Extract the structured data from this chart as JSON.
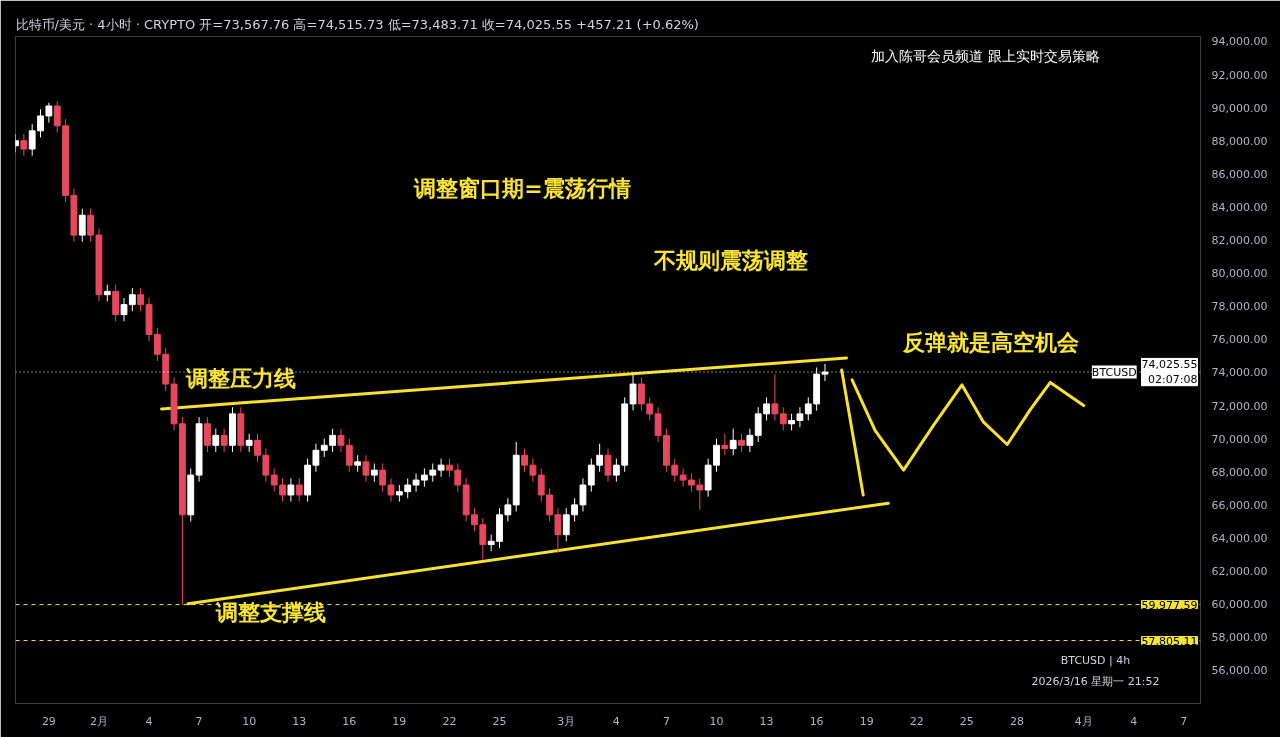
{
  "chart_data": {
    "type": "candlestick",
    "title": "比特币/美元 · 4小时 · CRYPTO  开=73,567.76  高=74,515.73  低=73,483.71  收=74,025.55  +457.21 (+0.62%)",
    "x": [
      "2026-01-27T00:00",
      "2026-01-27T12:00",
      "2026-01-28T00:00",
      "2026-01-28T12:00",
      "2026-01-29T00:00",
      "2026-01-29T12:00",
      "2026-01-30T00:00",
      "2026-01-30T12:00",
      "2026-01-31T00:00",
      "2026-01-31T12:00",
      "2026-02-01T00:00",
      "2026-02-01T12:00",
      "2026-02-02T00:00",
      "2026-02-02T12:00",
      "2026-02-03T00:00",
      "2026-02-03T12:00",
      "2026-02-04T00:00",
      "2026-02-04T12:00",
      "2026-02-05T00:00",
      "2026-02-05T12:00",
      "2026-02-06T00:00",
      "2026-02-06T12:00",
      "2026-02-07T00:00",
      "2026-02-07T12:00",
      "2026-02-08T00:00",
      "2026-02-08T12:00",
      "2026-02-09T00:00",
      "2026-02-09T12:00",
      "2026-02-10T00:00",
      "2026-02-10T12:00",
      "2026-02-11T00:00",
      "2026-02-11T12:00",
      "2026-02-12T00:00",
      "2026-02-12T12:00",
      "2026-02-13T00:00",
      "2026-02-13T12:00",
      "2026-02-14T00:00",
      "2026-02-14T12:00",
      "2026-02-15T00:00",
      "2026-02-15T12:00",
      "2026-02-16T00:00",
      "2026-02-16T12:00",
      "2026-02-17T00:00",
      "2026-02-17T12:00",
      "2026-02-18T00:00",
      "2026-02-18T12:00",
      "2026-02-19T00:00",
      "2026-02-19T12:00",
      "2026-02-20T00:00",
      "2026-02-20T12:00",
      "2026-02-21T00:00",
      "2026-02-21T12:00",
      "2026-02-22T00:00",
      "2026-02-22T12:00",
      "2026-02-23T00:00",
      "2026-02-23T12:00",
      "2026-02-24T00:00",
      "2026-02-24T12:00",
      "2026-02-25T00:00",
      "2026-02-25T12:00",
      "2026-02-26T00:00",
      "2026-02-26T12:00",
      "2026-02-27T00:00",
      "2026-02-27T12:00",
      "2026-02-28T00:00",
      "2026-02-28T12:00",
      "2026-03-01T00:00",
      "2026-03-01T12:00",
      "2026-03-02T00:00",
      "2026-03-02T12:00",
      "2026-03-03T00:00",
      "2026-03-03T12:00",
      "2026-03-04T00:00",
      "2026-03-04T12:00",
      "2026-03-05T00:00",
      "2026-03-05T12:00",
      "2026-03-06T00:00",
      "2026-03-06T12:00",
      "2026-03-07T00:00",
      "2026-03-07T12:00",
      "2026-03-08T00:00",
      "2026-03-08T12:00",
      "2026-03-09T00:00",
      "2026-03-09T12:00",
      "2026-03-10T00:00",
      "2026-03-10T12:00",
      "2026-03-11T00:00",
      "2026-03-11T12:00",
      "2026-03-12T00:00",
      "2026-03-12T12:00",
      "2026-03-13T00:00",
      "2026-03-13T12:00",
      "2026-03-14T00:00",
      "2026-03-14T12:00",
      "2026-03-15T00:00",
      "2026-03-15T12:00",
      "2026-03-16T00:00",
      "2026-03-16T12:00"
    ],
    "ohlc": [
      [
        87700,
        88400,
        87300,
        88000
      ],
      [
        88000,
        88400,
        87100,
        87500
      ],
      [
        87500,
        89000,
        87100,
        88600
      ],
      [
        88600,
        89900,
        88200,
        89500
      ],
      [
        89500,
        90300,
        89100,
        90100
      ],
      [
        90100,
        90400,
        88500,
        88900
      ],
      [
        88900,
        89300,
        84300,
        84700
      ],
      [
        84700,
        85100,
        81900,
        82300
      ],
      [
        82300,
        83900,
        81900,
        83500
      ],
      [
        83500,
        83900,
        81900,
        82300
      ],
      [
        82300,
        82700,
        78300,
        78700
      ],
      [
        78700,
        79300,
        78300,
        78900
      ],
      [
        78900,
        79300,
        77100,
        77500
      ],
      [
        77500,
        78500,
        77100,
        78100
      ],
      [
        78100,
        79100,
        77700,
        78700
      ],
      [
        78700,
        79100,
        77700,
        78100
      ],
      [
        78100,
        78500,
        75900,
        76300
      ],
      [
        76300,
        76700,
        74700,
        75100
      ],
      [
        75100,
        75500,
        72900,
        73300
      ],
      [
        73300,
        73700,
        70500,
        70900
      ],
      [
        70900,
        71300,
        59978,
        65400
      ],
      [
        65400,
        68200,
        65000,
        67800
      ],
      [
        67800,
        71300,
        67400,
        70900
      ],
      [
        70900,
        71300,
        69200,
        69600
      ],
      [
        69600,
        70600,
        69200,
        70200
      ],
      [
        70200,
        70600,
        69200,
        69600
      ],
      [
        69600,
        71900,
        69200,
        71500
      ],
      [
        71500,
        71900,
        69200,
        69600
      ],
      [
        69600,
        70300,
        69200,
        69900
      ],
      [
        69900,
        70300,
        68600,
        69000
      ],
      [
        69000,
        69400,
        67400,
        67800
      ],
      [
        67800,
        68200,
        66800,
        67200
      ],
      [
        67200,
        67600,
        66200,
        66600
      ],
      [
        66600,
        67600,
        66200,
        67200
      ],
      [
        67200,
        67600,
        66200,
        66600
      ],
      [
        66600,
        68800,
        66200,
        68400
      ],
      [
        68400,
        69700,
        68000,
        69300
      ],
      [
        69300,
        70000,
        68900,
        69600
      ],
      [
        69600,
        70600,
        69200,
        70200
      ],
      [
        70200,
        70600,
        69200,
        69600
      ],
      [
        69600,
        70000,
        68000,
        68400
      ],
      [
        68400,
        69000,
        68000,
        68600
      ],
      [
        68600,
        69000,
        67400,
        67800
      ],
      [
        67800,
        68500,
        67400,
        68100
      ],
      [
        68100,
        68500,
        66800,
        67200
      ],
      [
        67200,
        67600,
        66200,
        66600
      ],
      [
        66600,
        67200,
        66200,
        66800
      ],
      [
        66800,
        67600,
        66400,
        67200
      ],
      [
        67200,
        67900,
        66800,
        67500
      ],
      [
        67500,
        68200,
        67100,
        67800
      ],
      [
        67800,
        68500,
        67400,
        68100
      ],
      [
        68100,
        68800,
        67700,
        68400
      ],
      [
        68400,
        68800,
        67700,
        68100
      ],
      [
        68100,
        68500,
        66800,
        67200
      ],
      [
        67200,
        67600,
        65000,
        65400
      ],
      [
        65400,
        65800,
        64400,
        64800
      ],
      [
        64800,
        65200,
        62700,
        63600
      ],
      [
        63600,
        64200,
        63200,
        63800
      ],
      [
        63800,
        65800,
        63400,
        65400
      ],
      [
        65400,
        66400,
        65000,
        66000
      ],
      [
        66000,
        69800,
        65600,
        69000
      ],
      [
        69000,
        69400,
        68000,
        68400
      ],
      [
        68400,
        68800,
        67400,
        67800
      ],
      [
        67800,
        68200,
        66200,
        66600
      ],
      [
        66600,
        67000,
        65000,
        65400
      ],
      [
        65400,
        65800,
        63100,
        64200
      ],
      [
        64200,
        65800,
        63800,
        65400
      ],
      [
        65400,
        66400,
        65000,
        66000
      ],
      [
        66000,
        67600,
        65600,
        67200
      ],
      [
        67200,
        68800,
        66800,
        68400
      ],
      [
        68400,
        69700,
        68000,
        69000
      ],
      [
        69000,
        69400,
        67400,
        67800
      ],
      [
        67800,
        68800,
        67400,
        68400
      ],
      [
        68400,
        72500,
        68000,
        72100
      ],
      [
        72100,
        74000,
        71700,
        73300
      ],
      [
        73300,
        73700,
        71700,
        72100
      ],
      [
        72100,
        72500,
        71100,
        71500
      ],
      [
        71500,
        71900,
        69800,
        70200
      ],
      [
        70200,
        70600,
        68000,
        68400
      ],
      [
        68400,
        68800,
        67400,
        67800
      ],
      [
        67800,
        68200,
        67100,
        67500
      ],
      [
        67500,
        67900,
        66800,
        67200
      ],
      [
        67200,
        67600,
        65700,
        66900
      ],
      [
        66900,
        68800,
        66500,
        68400
      ],
      [
        68400,
        70000,
        68000,
        69600
      ],
      [
        69600,
        70300,
        69000,
        69400
      ],
      [
        69400,
        70600,
        69000,
        69900
      ],
      [
        69900,
        70300,
        69200,
        69600
      ],
      [
        69600,
        70600,
        69200,
        70200
      ],
      [
        70200,
        71900,
        69800,
        71500
      ],
      [
        71500,
        72500,
        71100,
        72100
      ],
      [
        72100,
        73900,
        71100,
        71500
      ],
      [
        71500,
        71900,
        70500,
        70900
      ],
      [
        70900,
        71500,
        70500,
        71100
      ],
      [
        71100,
        71900,
        70700,
        71500
      ],
      [
        71500,
        72500,
        71100,
        72100
      ],
      [
        72100,
        74300,
        71700,
        73900
      ],
      [
        73900,
        74515.73,
        73483.71,
        74025.55
      ]
    ],
    "colors": [
      "#ffffff",
      "#e8485e",
      "#ffffff",
      "#ffffff",
      "#ffffff",
      "#e8485e",
      "#e8485e",
      "#e8485e",
      "#ffffff",
      "#e8485e",
      "#e8485e",
      "#ffffff",
      "#e8485e",
      "#ffffff",
      "#ffffff",
      "#e8485e",
      "#e8485e",
      "#e8485e",
      "#e8485e",
      "#e8485e",
      "#e8485e",
      "#ffffff",
      "#ffffff",
      "#e8485e",
      "#ffffff",
      "#e8485e",
      "#ffffff",
      "#e8485e",
      "#ffffff",
      "#e8485e",
      "#e8485e",
      "#e8485e",
      "#e8485e",
      "#ffffff",
      "#e8485e",
      "#ffffff",
      "#ffffff",
      "#ffffff",
      "#ffffff",
      "#e8485e",
      "#e8485e",
      "#ffffff",
      "#e8485e",
      "#ffffff",
      "#e8485e",
      "#e8485e",
      "#ffffff",
      "#ffffff",
      "#ffffff",
      "#ffffff",
      "#ffffff",
      "#ffffff",
      "#e8485e",
      "#e8485e",
      "#e8485e",
      "#e8485e",
      "#e8485e",
      "#ffffff",
      "#ffffff",
      "#ffffff",
      "#ffffff",
      "#e8485e",
      "#e8485e",
      "#e8485e",
      "#e8485e",
      "#e8485e",
      "#ffffff",
      "#ffffff",
      "#ffffff",
      "#ffffff",
      "#ffffff",
      "#e8485e",
      "#ffffff",
      "#ffffff",
      "#ffffff",
      "#e8485e",
      "#e8485e",
      "#e8485e",
      "#e8485e",
      "#e8485e",
      "#e8485e",
      "#e8485e",
      "#e8485e",
      "#ffffff",
      "#ffffff",
      "#e8485e",
      "#ffffff",
      "#e8485e",
      "#ffffff",
      "#ffffff",
      "#ffffff",
      "#e8485e",
      "#e8485e",
      "#ffffff",
      "#ffffff",
      "#ffffff",
      "#ffffff",
      "#ffffff"
    ],
    "series": [
      {
        "type": "line",
        "color": "#f7e22f",
        "x": [
          "2026-02-04T18:00",
          "2026-03-17T19:00"
        ],
        "values": [
          71800,
          74880
        ]
      },
      {
        "type": "line",
        "color": "#f7e22f",
        "x": [
          "2026-02-06T08:00",
          "2026-03-20T07:00"
        ],
        "values": [
          60030,
          66100
        ]
      },
      {
        "type": "line",
        "color": "#f7e22f",
        "x": [
          "2026-03-17T12:00",
          "2026-03-18T19:00"
        ],
        "values": [
          74150,
          66600
        ]
      },
      {
        "type": "line",
        "color": "#f7e22f",
        "x": [
          "2026-03-18T03:00",
          "2026-03-19T12:00",
          "2026-03-21T05:00",
          "2026-03-23T00:00",
          "2026-03-24T17:00",
          "2026-03-26T00:00",
          "2026-03-27T10:00",
          "2026-03-28T20:00",
          "2026-03-30T00:00",
          "2026-04-01T00:00"
        ],
        "values": [
          73550,
          70500,
          68100,
          70800,
          73250,
          71000,
          69650,
          71800,
          73400,
          72000
        ]
      }
    ],
    "xlim": [
      "2026-01-27T00:00",
      "2026-04-08T00:00"
    ],
    "xticks": [
      {
        "value": "2026-01-29",
        "label": "29"
      },
      {
        "value": "2026-02-01",
        "label": "2月"
      },
      {
        "value": "2026-02-04",
        "label": "4"
      },
      {
        "value": "2026-02-07",
        "label": "7"
      },
      {
        "value": "2026-02-10",
        "label": "10"
      },
      {
        "value": "2026-02-13",
        "label": "13"
      },
      {
        "value": "2026-02-16",
        "label": "16"
      },
      {
        "value": "2026-02-19",
        "label": "19"
      },
      {
        "value": "2026-02-22",
        "label": "22"
      },
      {
        "value": "2026-02-25",
        "label": "25"
      },
      {
        "value": "2026-03-01",
        "label": "3月"
      },
      {
        "value": "2026-03-04",
        "label": "4"
      },
      {
        "value": "2026-03-07",
        "label": "7"
      },
      {
        "value": "2026-03-10",
        "label": "10"
      },
      {
        "value": "2026-03-13",
        "label": "13"
      },
      {
        "value": "2026-03-16",
        "label": "16"
      },
      {
        "value": "2026-03-19",
        "label": "19"
      },
      {
        "value": "2026-03-22",
        "label": "22"
      },
      {
        "value": "2026-03-25",
        "label": "25"
      },
      {
        "value": "2026-03-28",
        "label": "28"
      },
      {
        "value": "2026-04-01",
        "label": "4月"
      },
      {
        "value": "2026-04-04",
        "label": "4"
      },
      {
        "value": "2026-04-07",
        "label": "7"
      }
    ],
    "ylim": [
      54000,
      94300
    ],
    "yticks": [
      {
        "value": 56000,
        "label": "56,000.00"
      },
      {
        "value": 58000,
        "label": "58,000.00"
      },
      {
        "value": 60000,
        "label": "60,000.00"
      },
      {
        "value": 62000,
        "label": "62,000.00"
      },
      {
        "value": 64000,
        "label": "64,000.00"
      },
      {
        "value": 66000,
        "label": "66,000.00"
      },
      {
        "value": 68000,
        "label": "68,000.00"
      },
      {
        "value": 70000,
        "label": "70,000.00"
      },
      {
        "value": 72000,
        "label": "72,000.00"
      },
      {
        "value": 74000,
        "label": "74,000.00"
      },
      {
        "value": 76000,
        "label": "76,000.00"
      },
      {
        "value": 78000,
        "label": "78,000.00"
      },
      {
        "value": 80000,
        "label": "80,000.00"
      },
      {
        "value": 82000,
        "label": "82,000.00"
      },
      {
        "value": 84000,
        "label": "84,000.00"
      },
      {
        "value": 86000,
        "label": "86,000.00"
      },
      {
        "value": 88000,
        "label": "88,000.00"
      },
      {
        "value": 90000,
        "label": "90,000.00"
      },
      {
        "value": 92000,
        "label": "92,000.00"
      },
      {
        "value": 94000,
        "label": "94,000.00"
      }
    ],
    "ref_lines": [
      {
        "axis": "y",
        "value": 74025.55,
        "label": "74,025.55\n02:07:08",
        "color": "#ffffff",
        "line_style": "dotted"
      },
      {
        "axis": "y",
        "value": 59977.59,
        "label": "59,977.59",
        "color": "#f2e33a",
        "line_style": "dashed"
      },
      {
        "axis": "y",
        "value": 57805.11,
        "label": "57,805.11",
        "color": "#f2e33a",
        "line_style": "dashed"
      }
    ],
    "annotations": [
      "加入陈哥会员频道 跟上实时交易策略",
      "调整窗口期=震荡行情",
      "不规则震荡调整",
      "反弹就是高空机会",
      "调整压力线",
      "调整支撑线",
      {
        "text": "BTCUSD",
        "x": "2026-04-02T20:00",
        "y": 74025.55
      },
      "BTCUSD | 4h",
      "2026/3/16 星期一 21:52"
    ]
  }
}
